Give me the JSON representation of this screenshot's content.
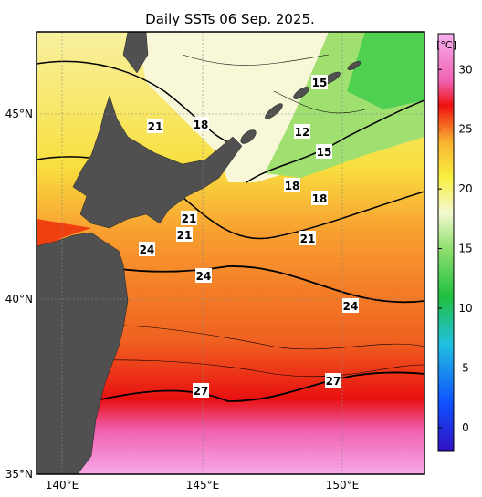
{
  "title": "Daily SSTs 06 Sep. 2025.",
  "lon_labels": [
    "140°E",
    "145°E",
    "150°E"
  ],
  "lat_labels": [
    "45°N",
    "40°N",
    "35°N"
  ],
  "contour_labels": [
    15,
    12,
    15,
    18,
    21,
    18,
    18,
    21,
    21,
    21,
    24,
    24,
    24,
    27,
    27
  ],
  "colorbar": {
    "unit": "[°C]",
    "range": [
      -2,
      33
    ],
    "ticks": [
      0,
      5,
      10,
      15,
      20,
      25,
      30
    ],
    "stops": [
      {
        "value": -2,
        "color": "#3010c0"
      },
      {
        "value": 2,
        "color": "#1050ff"
      },
      {
        "value": 7,
        "color": "#20c0e0"
      },
      {
        "value": 11,
        "color": "#20c040"
      },
      {
        "value": 15,
        "color": "#90e070"
      },
      {
        "value": 18,
        "color": "#f4f8d0"
      },
      {
        "value": 21,
        "color": "#f8f040"
      },
      {
        "value": 24,
        "color": "#f8b030"
      },
      {
        "value": 27,
        "color": "#f01010"
      },
      {
        "value": 29,
        "color": "#f060b0"
      },
      {
        "value": 33,
        "color": "#f8b0f0"
      }
    ]
  }
}
